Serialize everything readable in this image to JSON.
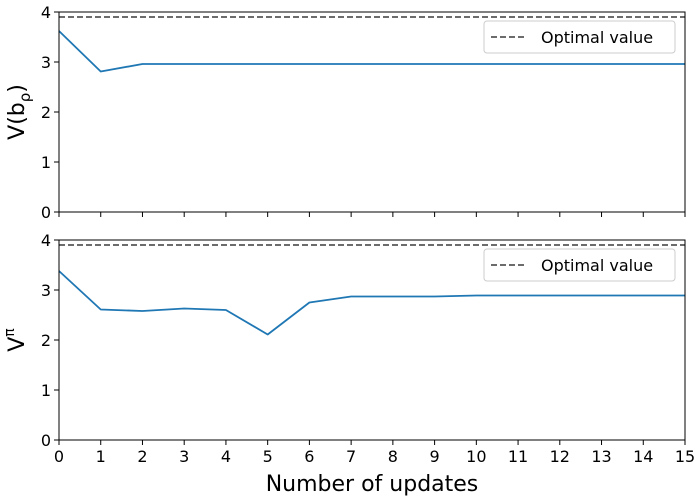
{
  "colors": {
    "series": "#1f77b4",
    "optimal_line": "#3c3c3c",
    "axes": "#000000",
    "legend_border": "#cccccc"
  },
  "chart_data": [
    {
      "type": "line",
      "ylabel": "V(b_ρ)",
      "ylabel_main": "V(b",
      "ylabel_sub": "ρ",
      "ylabel_close": ")",
      "xlim": [
        0,
        15
      ],
      "ylim": [
        0,
        4
      ],
      "yticks": [
        "0",
        "1",
        "2",
        "3",
        "4"
      ],
      "show_xtick_labels": false,
      "grid": false,
      "legend_position": "top-right",
      "reference": {
        "name": "Optimal value",
        "value": 3.9,
        "style": "dashed"
      },
      "series": [
        {
          "x": [
            0,
            1,
            2,
            3,
            4,
            5,
            6,
            7,
            8,
            9,
            10,
            11,
            12,
            13,
            14,
            15
          ],
          "values": [
            3.62,
            2.81,
            2.96,
            2.96,
            2.96,
            2.96,
            2.96,
            2.96,
            2.96,
            2.96,
            2.96,
            2.96,
            2.96,
            2.96,
            2.96,
            2.96
          ]
        }
      ]
    },
    {
      "type": "line",
      "ylabel": "V^π",
      "ylabel_main": "V",
      "ylabel_sup": "π",
      "xlabel": "Number of updates",
      "xlim": [
        0,
        15
      ],
      "ylim": [
        0,
        4
      ],
      "yticks": [
        "0",
        "1",
        "2",
        "3",
        "4"
      ],
      "xticks": [
        "0",
        "1",
        "2",
        "3",
        "4",
        "5",
        "6",
        "7",
        "8",
        "9",
        "10",
        "11",
        "12",
        "13",
        "14",
        "15"
      ],
      "grid": false,
      "legend_position": "top-right",
      "reference": {
        "name": "Optimal value",
        "value": 3.9,
        "style": "dashed"
      },
      "series": [
        {
          "x": [
            0,
            1,
            2,
            3,
            4,
            5,
            6,
            7,
            8,
            9,
            10,
            11,
            12,
            13,
            14,
            15
          ],
          "values": [
            3.38,
            2.61,
            2.58,
            2.63,
            2.6,
            2.11,
            2.75,
            2.87,
            2.87,
            2.87,
            2.89,
            2.89,
            2.89,
            2.89,
            2.89,
            2.89
          ]
        }
      ]
    }
  ]
}
